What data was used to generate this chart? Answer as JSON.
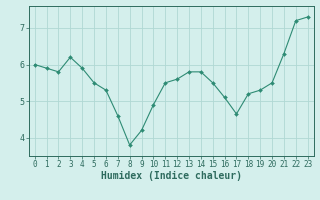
{
  "x": [
    0,
    1,
    2,
    3,
    4,
    5,
    6,
    7,
    8,
    9,
    10,
    11,
    12,
    13,
    14,
    15,
    16,
    17,
    18,
    19,
    20,
    21,
    22,
    23
  ],
  "y": [
    6.0,
    5.9,
    5.8,
    6.2,
    5.9,
    5.5,
    5.3,
    4.6,
    3.8,
    4.2,
    4.9,
    5.5,
    5.6,
    5.8,
    5.8,
    5.5,
    5.1,
    4.65,
    5.2,
    5.3,
    5.5,
    6.3,
    7.2,
    7.3
  ],
  "line_color": "#2e8b74",
  "marker": "D",
  "marker_size": 2,
  "bg_color": "#d4efec",
  "grid_color": "#b0d8d4",
  "axis_color": "#2e6b5e",
  "xlabel": "Humidex (Indice chaleur)",
  "xlabel_fontsize": 7,
  "tick_fontsize": 5.5,
  "ylim": [
    3.5,
    7.6
  ],
  "xlim": [
    -0.5,
    23.5
  ],
  "yticks": [
    4,
    5,
    6,
    7
  ],
  "xticks": [
    0,
    1,
    2,
    3,
    4,
    5,
    6,
    7,
    8,
    9,
    10,
    11,
    12,
    13,
    14,
    15,
    16,
    17,
    18,
    19,
    20,
    21,
    22,
    23
  ]
}
